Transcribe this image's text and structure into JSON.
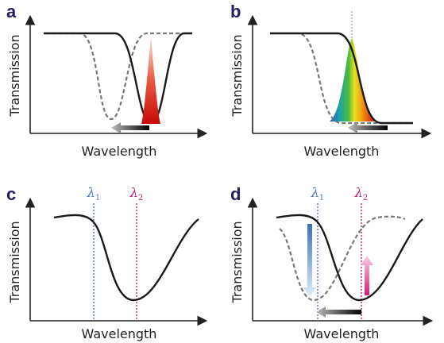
{
  "panels": [
    {
      "label": "a",
      "y_label": "Transmission",
      "x_label": "Wavelength"
    },
    {
      "label": "b",
      "y_label": "Transmission",
      "x_label": "Wavelength"
    },
    {
      "label": "c",
      "y_label": "Transmission",
      "x_label": "Wavelength",
      "lambdas": [
        {
          "symbol": "λ",
          "subscript": "1"
        },
        {
          "symbol": "λ",
          "subscript": "2"
        }
      ]
    },
    {
      "label": "d",
      "y_label": "Transmission",
      "x_label": "Wavelength",
      "lambdas": [
        {
          "symbol": "λ",
          "subscript": "1"
        },
        {
          "symbol": "λ",
          "subscript": "2"
        }
      ]
    }
  ]
}
